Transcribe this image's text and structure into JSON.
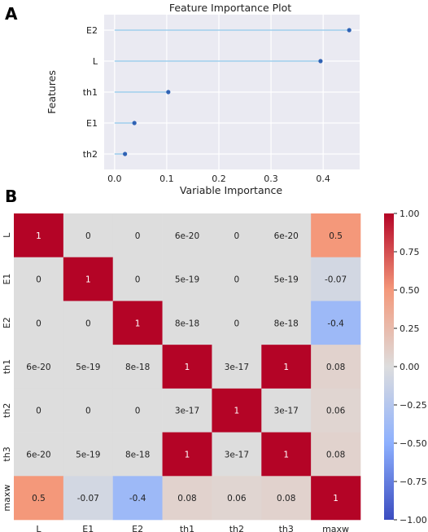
{
  "panels": {
    "a": "A",
    "b": "B"
  },
  "chart_data": [
    {
      "type": "lollipop",
      "title": "Feature Importance Plot",
      "xlabel": "Variable Importance",
      "ylabel": "Features",
      "categories": [
        "E2",
        "L",
        "th1",
        "E1",
        "th2"
      ],
      "values": [
        0.45,
        0.395,
        0.103,
        0.038,
        0.02
      ],
      "xlim": [
        -0.02,
        0.47
      ],
      "xticks": [
        0.0,
        0.1,
        0.2,
        0.3,
        0.4
      ],
      "xtick_labels": [
        "0.0",
        "0.1",
        "0.2",
        "0.3",
        "0.4"
      ],
      "grid": true,
      "line_color": "#8ec6ea",
      "marker_color": "#2f62b4",
      "background": "#eaeaf2"
    },
    {
      "type": "heatmap",
      "rows": [
        "L",
        "E1",
        "E2",
        "th1",
        "th2",
        "th3",
        "maxw"
      ],
      "cols": [
        "L",
        "E1",
        "E2",
        "th1",
        "th2",
        "th3",
        "maxw"
      ],
      "values": [
        [
          1,
          0,
          0,
          6e-20,
          0,
          6e-20,
          0.5
        ],
        [
          0,
          1,
          0,
          5e-19,
          0,
          5e-19,
          -0.07
        ],
        [
          0,
          0,
          1,
          8e-18,
          0,
          8e-18,
          -0.4
        ],
        [
          6e-20,
          5e-19,
          8e-18,
          1,
          3e-17,
          1,
          0.08
        ],
        [
          0,
          0,
          0,
          3e-17,
          1,
          3e-17,
          0.06
        ],
        [
          6e-20,
          5e-19,
          8e-18,
          1,
          3e-17,
          1,
          0.08
        ],
        [
          0.5,
          -0.07,
          -0.4,
          0.08,
          0.06,
          0.08,
          1
        ]
      ],
      "labels": [
        [
          "1",
          "0",
          "0",
          "6e-20",
          "0",
          "6e-20",
          "0.5"
        ],
        [
          "0",
          "1",
          "0",
          "5e-19",
          "0",
          "5e-19",
          "-0.07"
        ],
        [
          "0",
          "0",
          "1",
          "8e-18",
          "0",
          "8e-18",
          "-0.4"
        ],
        [
          "6e-20",
          "5e-19",
          "8e-18",
          "1",
          "3e-17",
          "1",
          "0.08"
        ],
        [
          "0",
          "0",
          "0",
          "3e-17",
          "1",
          "3e-17",
          "0.06"
        ],
        [
          "6e-20",
          "5e-19",
          "8e-18",
          "1",
          "3e-17",
          "1",
          "0.08"
        ],
        [
          "0.5",
          "-0.07",
          "-0.4",
          "0.08",
          "0.06",
          "0.08",
          "1"
        ]
      ],
      "colormap": "coolwarm",
      "vmin": -1,
      "vmax": 1,
      "colorbar_ticks": [
        1.0,
        0.75,
        0.5,
        0.25,
        0.0,
        -0.25,
        -0.5,
        -0.75,
        -1.0
      ],
      "colorbar_tick_labels": [
        "1.00",
        "0.75",
        "0.50",
        "0.25",
        "0.00",
        "−0.25",
        "−0.50",
        "−0.75",
        "−1.00"
      ]
    }
  ]
}
